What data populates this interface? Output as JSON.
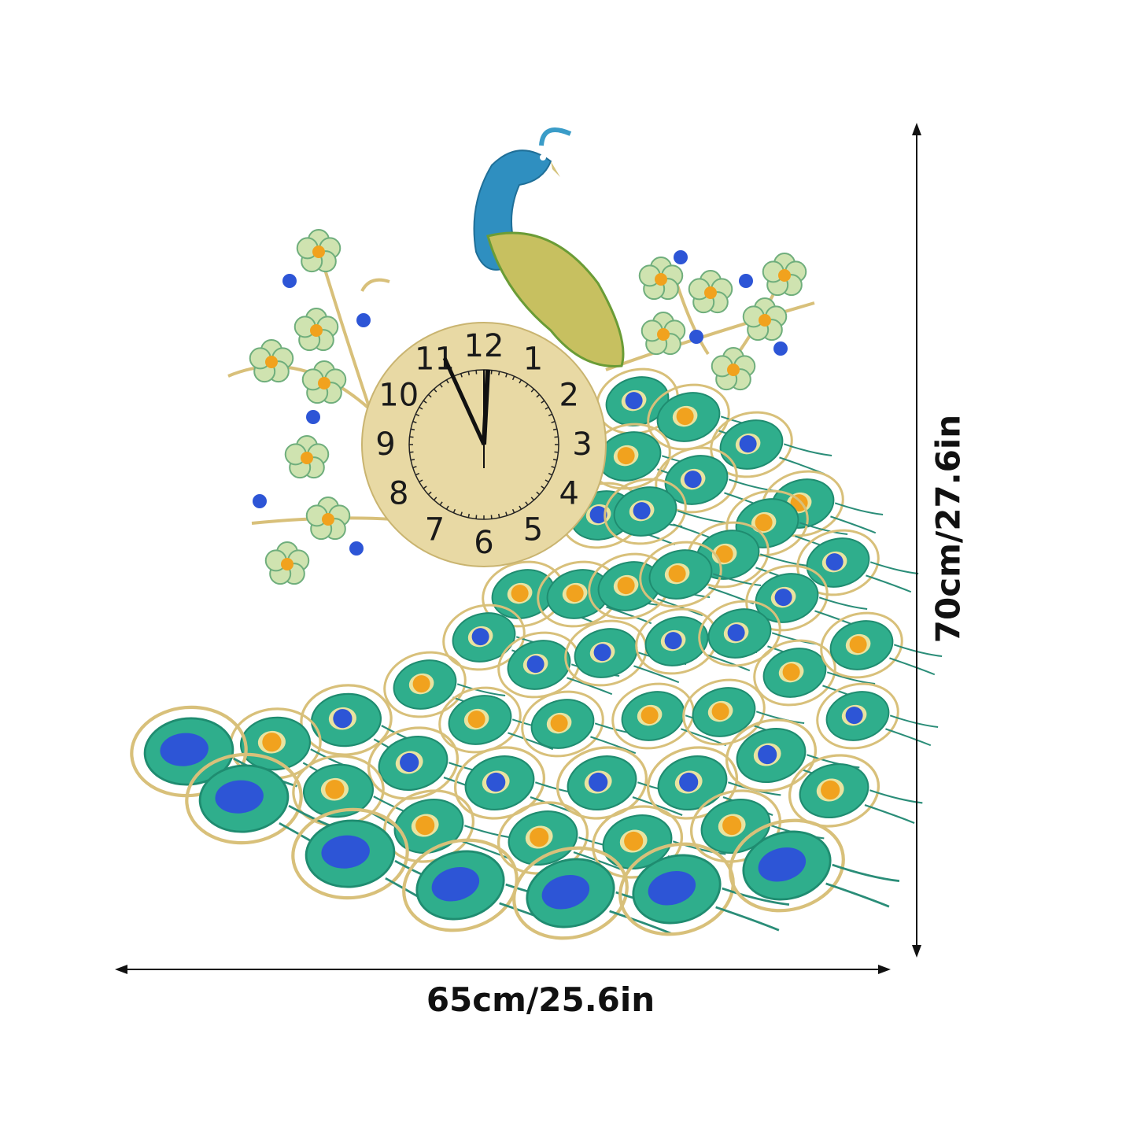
{
  "product": {
    "width_label": "65cm/25.6in",
    "height_label": "70cm/27.6in",
    "clock_numerals": [
      "12",
      "1",
      "2",
      "3",
      "4",
      "5",
      "6",
      "7",
      "8",
      "9",
      "10",
      "11"
    ],
    "colors": {
      "gold": "#d8c07a",
      "clock_face": "#e8d9a4",
      "feather_green": "#2fae8c",
      "gem_blue": "#2d55d6",
      "gem_orange": "#f1a21e",
      "peacock_blue": "#2f8fc0",
      "flower": "#cfe3b0"
    }
  }
}
